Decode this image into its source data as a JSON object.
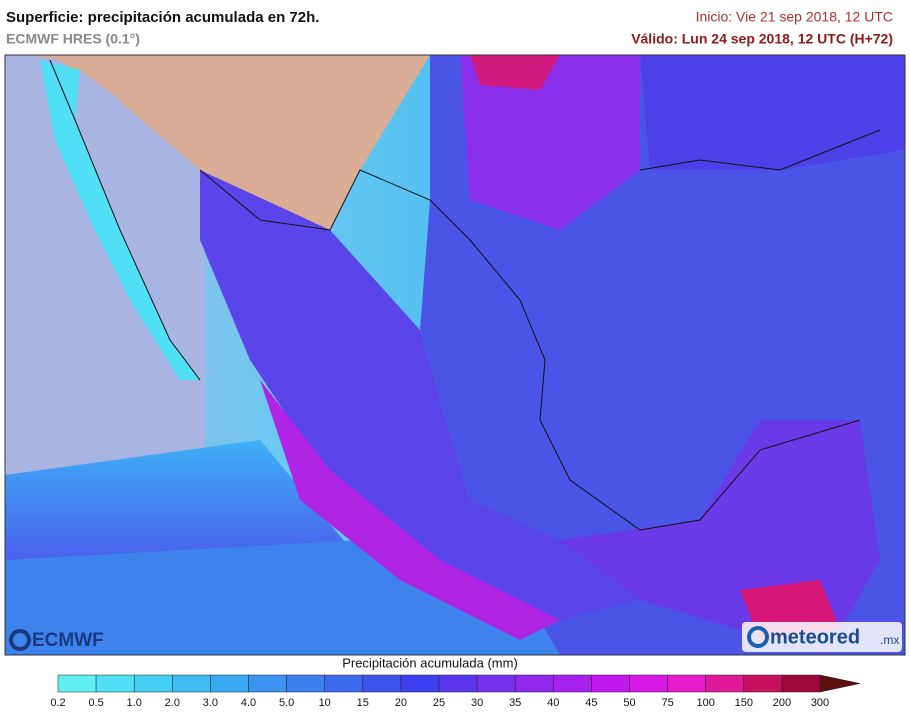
{
  "header": {
    "title": "Superficie: precipitación acumulada en 72h.",
    "model": "ECMWF HRES (0.1°)",
    "init": "Inicio: Vie 21 sep 2018, 12 UTC",
    "valid": "Válido: Lun 24 sep 2018, 12 UTC (H+72)"
  },
  "logos": {
    "left": "ECMWF",
    "right": "meteored",
    "right_suffix": ".mx"
  },
  "legend": {
    "title": "Precipitación acumulada (mm)",
    "labels": [
      "0.2",
      "0.5",
      "1.0",
      "2.0",
      "3.0",
      "4.0",
      "5.0",
      "10",
      "15",
      "20",
      "25",
      "30",
      "35",
      "40",
      "45",
      "50",
      "75",
      "100",
      "150",
      "200",
      "300"
    ],
    "colors": [
      "#5ff0f5",
      "#4fe0f5",
      "#45cff5",
      "#3fbdf5",
      "#3aa9f3",
      "#3a95f0",
      "#3a80ee",
      "#3b6aee",
      "#3c55ee",
      "#3d3ff0",
      "#5a35ee",
      "#7530ee",
      "#9028ee",
      "#a820ee",
      "#c018ee",
      "#d818e8",
      "#e81ccc",
      "#e0189a",
      "#c8105e",
      "#a0083a"
    ],
    "arrow_color": "#5a1010"
  }
}
